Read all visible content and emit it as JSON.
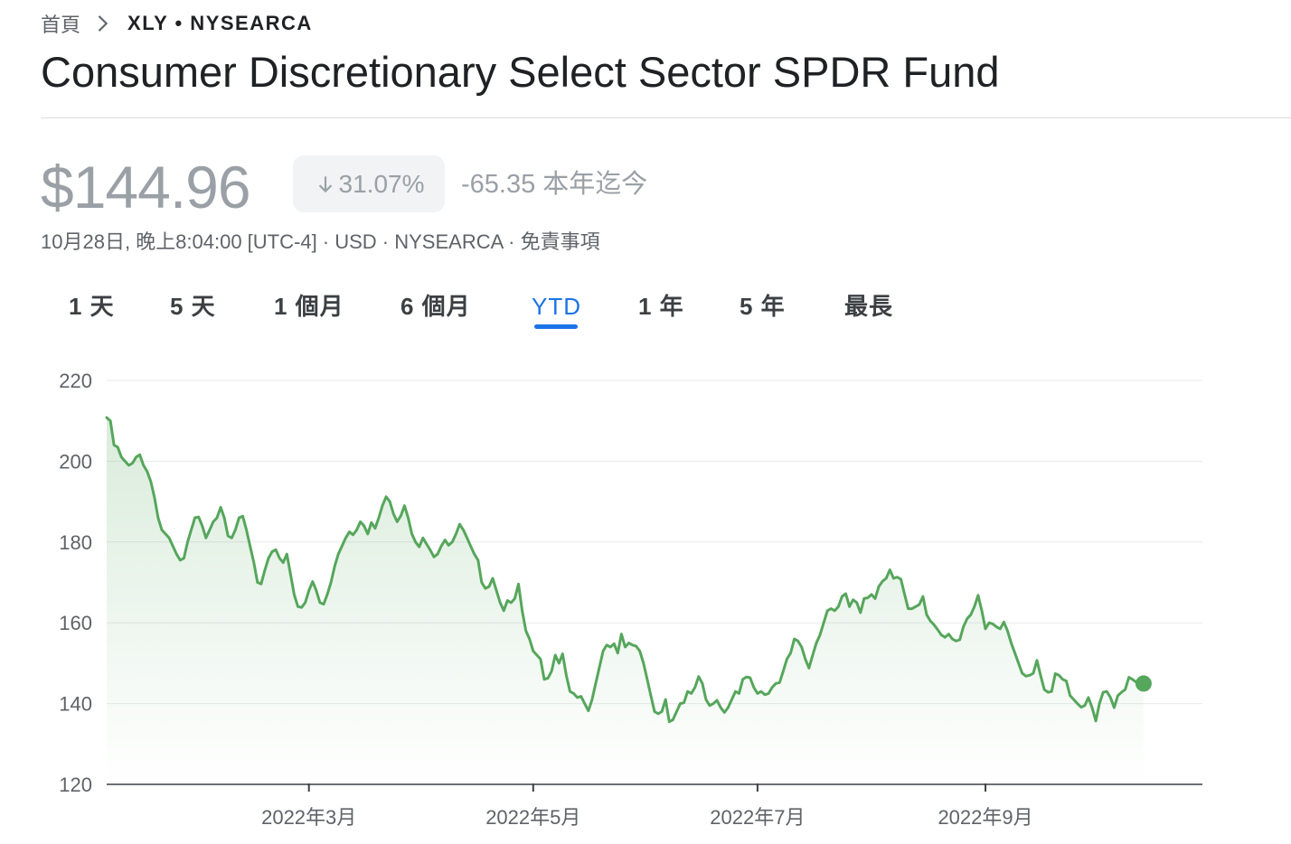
{
  "breadcrumb": {
    "home": "首頁",
    "current": "XLY • NYSEARCA"
  },
  "title": "Consumer Discretionary Select Sector SPDR Fund",
  "quote": {
    "price": "$144.96",
    "change_percent": "31.07%",
    "change_direction": "down",
    "change_abs": "-65.35 本年迄今",
    "meta": "10月28日, 晚上8:04:00 [UTC-4] · USD · NYSEARCA · ",
    "disclaimer": "免責事項"
  },
  "tabs": [
    {
      "label": "1 天",
      "active": false
    },
    {
      "label": "5 天",
      "active": false
    },
    {
      "label": "1 個月",
      "active": false
    },
    {
      "label": "6 個月",
      "active": false
    },
    {
      "label": "YTD",
      "active": true
    },
    {
      "label": "1 年",
      "active": false
    },
    {
      "label": "5 年",
      "active": false
    },
    {
      "label": "最長",
      "active": false
    }
  ],
  "colors": {
    "line": "#56a65c",
    "accent": "#1a73e8",
    "muted": "#9aa0a6"
  },
  "chart_data": {
    "type": "area",
    "ylim": [
      120,
      220
    ],
    "y_ticks": [
      220,
      200,
      180,
      160,
      140,
      120
    ],
    "x_ticks": [
      {
        "label": "2022年3月",
        "day": 58
      },
      {
        "label": "2022年5月",
        "day": 119
      },
      {
        "label": "2022年7月",
        "day": 180
      },
      {
        "label": "2022年9月",
        "day": 242
      }
    ],
    "x_range_days": [
      3,
      301
    ],
    "grid": true,
    "series": [
      {
        "points": [
          [
            3,
            210.8
          ],
          [
            4,
            210
          ],
          [
            5,
            204
          ],
          [
            6,
            203.5
          ],
          [
            7,
            201
          ],
          [
            8,
            200
          ],
          [
            9,
            199
          ],
          [
            10,
            199.5
          ],
          [
            11,
            201
          ],
          [
            12,
            201.6
          ],
          [
            13,
            199
          ],
          [
            14,
            197.5
          ],
          [
            15,
            195
          ],
          [
            16,
            191
          ],
          [
            17,
            186
          ],
          [
            18,
            183
          ],
          [
            19,
            182
          ],
          [
            20,
            181
          ],
          [
            21,
            179
          ],
          [
            22,
            177
          ],
          [
            23,
            175.5
          ],
          [
            24,
            176
          ],
          [
            25,
            180
          ],
          [
            26,
            183
          ],
          [
            27,
            186
          ],
          [
            28,
            186.2
          ],
          [
            29,
            184
          ],
          [
            30,
            181
          ],
          [
            31,
            183
          ],
          [
            32,
            185
          ],
          [
            33,
            186
          ],
          [
            34,
            188.6
          ],
          [
            35,
            186
          ],
          [
            36,
            181.5
          ],
          [
            37,
            181
          ],
          [
            38,
            183
          ],
          [
            39,
            186
          ],
          [
            40,
            186.4
          ],
          [
            41,
            183
          ],
          [
            42,
            179
          ],
          [
            43,
            175
          ],
          [
            44,
            170
          ],
          [
            45,
            169.6
          ],
          [
            46,
            173
          ],
          [
            47,
            176
          ],
          [
            48,
            177.6
          ],
          [
            49,
            178.1
          ],
          [
            50,
            176
          ],
          [
            51,
            174.9
          ],
          [
            52,
            177
          ],
          [
            53,
            172
          ],
          [
            54,
            167
          ],
          [
            55,
            164
          ],
          [
            56,
            163.8
          ],
          [
            57,
            165
          ],
          [
            58,
            168
          ],
          [
            59,
            170.2
          ],
          [
            60,
            168
          ],
          [
            61,
            165
          ],
          [
            62,
            164.6
          ],
          [
            63,
            167
          ],
          [
            64,
            170
          ],
          [
            65,
            174
          ],
          [
            66,
            177
          ],
          [
            67,
            179
          ],
          [
            68,
            181
          ],
          [
            69,
            182.5
          ],
          [
            70,
            181.8
          ],
          [
            71,
            183
          ],
          [
            72,
            185
          ],
          [
            73,
            184
          ],
          [
            74,
            182
          ],
          [
            75,
            184.8
          ],
          [
            76,
            183.4
          ],
          [
            77,
            186
          ],
          [
            78,
            189
          ],
          [
            79,
            191.2
          ],
          [
            80,
            190
          ],
          [
            81,
            187
          ],
          [
            82,
            185
          ],
          [
            83,
            186.5
          ],
          [
            84,
            189
          ],
          [
            85,
            186
          ],
          [
            86,
            182
          ],
          [
            87,
            180
          ],
          [
            88,
            178.8
          ],
          [
            89,
            181
          ],
          [
            90,
            179.5
          ],
          [
            91,
            178
          ],
          [
            92,
            176.3
          ],
          [
            93,
            177
          ],
          [
            94,
            179
          ],
          [
            95,
            180.5
          ],
          [
            96,
            179.2
          ],
          [
            97,
            180
          ],
          [
            98,
            182
          ],
          [
            99,
            184.4
          ],
          [
            100,
            183
          ],
          [
            101,
            181
          ],
          [
            102,
            179
          ],
          [
            103,
            177
          ],
          [
            104,
            175.5
          ],
          [
            105,
            170
          ],
          [
            106,
            168.5
          ],
          [
            107,
            169
          ],
          [
            108,
            171
          ],
          [
            109,
            168
          ],
          [
            110,
            165
          ],
          [
            111,
            163
          ],
          [
            112,
            165.5
          ],
          [
            113,
            165
          ],
          [
            114,
            166
          ],
          [
            115,
            169.6
          ],
          [
            116,
            163
          ],
          [
            117,
            158
          ],
          [
            118,
            156
          ],
          [
            119,
            153
          ],
          [
            120,
            152
          ],
          [
            121,
            151
          ],
          [
            122,
            146
          ],
          [
            123,
            146.3
          ],
          [
            124,
            148
          ],
          [
            125,
            152
          ],
          [
            126,
            150
          ],
          [
            127,
            152.3
          ],
          [
            128,
            147
          ],
          [
            129,
            143
          ],
          [
            130,
            142.5
          ],
          [
            131,
            141.5
          ],
          [
            132,
            141.8
          ],
          [
            133,
            140
          ],
          [
            134,
            138.2
          ],
          [
            135,
            141
          ],
          [
            136,
            145
          ],
          [
            137,
            149
          ],
          [
            138,
            153
          ],
          [
            139,
            154.5
          ],
          [
            140,
            154
          ],
          [
            141,
            154.8
          ],
          [
            142,
            152.5
          ],
          [
            143,
            157.2
          ],
          [
            144,
            154
          ],
          [
            145,
            155
          ],
          [
            146,
            154.5
          ],
          [
            147,
            154.2
          ],
          [
            148,
            153
          ],
          [
            149,
            150
          ],
          [
            150,
            146
          ],
          [
            151,
            142
          ],
          [
            152,
            138
          ],
          [
            153,
            137.5
          ],
          [
            154,
            138
          ],
          [
            155,
            141
          ],
          [
            156,
            135.5
          ],
          [
            157,
            136
          ],
          [
            158,
            138
          ],
          [
            159,
            140
          ],
          [
            160,
            140.2
          ],
          [
            161,
            143
          ],
          [
            162,
            142.5
          ],
          [
            163,
            144
          ],
          [
            164,
            146.7
          ],
          [
            165,
            145
          ],
          [
            166,
            141
          ],
          [
            167,
            139.5
          ],
          [
            168,
            140
          ],
          [
            169,
            140.8
          ],
          [
            170,
            139
          ],
          [
            171,
            137.8
          ],
          [
            172,
            139
          ],
          [
            173,
            141
          ],
          [
            174,
            143
          ],
          [
            175,
            142.5
          ],
          [
            176,
            146
          ],
          [
            177,
            146.6
          ],
          [
            178,
            146.4
          ],
          [
            179,
            144
          ],
          [
            180,
            142.5
          ],
          [
            181,
            143
          ],
          [
            182,
            142.2
          ],
          [
            183,
            142.5
          ],
          [
            184,
            144
          ],
          [
            185,
            145
          ],
          [
            186,
            145.2
          ],
          [
            187,
            148
          ],
          [
            188,
            151
          ],
          [
            189,
            152.5
          ],
          [
            190,
            156
          ],
          [
            191,
            155.5
          ],
          [
            192,
            154
          ],
          [
            193,
            151
          ],
          [
            194,
            148.8
          ],
          [
            195,
            152
          ],
          [
            196,
            155
          ],
          [
            197,
            157
          ],
          [
            198,
            160
          ],
          [
            199,
            163
          ],
          [
            200,
            163.5
          ],
          [
            201,
            163
          ],
          [
            202,
            164
          ],
          [
            203,
            166.5
          ],
          [
            204,
            167.2
          ],
          [
            205,
            164
          ],
          [
            206,
            165.7
          ],
          [
            207,
            165
          ],
          [
            208,
            162.5
          ],
          [
            209,
            166
          ],
          [
            210,
            166.2
          ],
          [
            211,
            167
          ],
          [
            212,
            166
          ],
          [
            213,
            169
          ],
          [
            214,
            170.3
          ],
          [
            215,
            171
          ],
          [
            216,
            173.1
          ],
          [
            217,
            171
          ],
          [
            218,
            171.3
          ],
          [
            219,
            170.8
          ],
          [
            220,
            167
          ],
          [
            221,
            163.5
          ],
          [
            222,
            163.5
          ],
          [
            223,
            164
          ],
          [
            224,
            164.5
          ],
          [
            225,
            166.5
          ],
          [
            226,
            162
          ],
          [
            227,
            160.5
          ],
          [
            228,
            159.5
          ],
          [
            229,
            158.3
          ],
          [
            230,
            157
          ],
          [
            231,
            156.4
          ],
          [
            232,
            157.2
          ],
          [
            233,
            156
          ],
          [
            234,
            155.5
          ],
          [
            235,
            155.8
          ],
          [
            236,
            159
          ],
          [
            237,
            161
          ],
          [
            238,
            162
          ],
          [
            239,
            164
          ],
          [
            240,
            166.8
          ],
          [
            241,
            163
          ],
          [
            242,
            158.5
          ],
          [
            243,
            160
          ],
          [
            244,
            159.7
          ],
          [
            245,
            159
          ],
          [
            246,
            158.5
          ],
          [
            247,
            160.2
          ],
          [
            248,
            158
          ],
          [
            249,
            155
          ],
          [
            250,
            152.5
          ],
          [
            251,
            150
          ],
          [
            252,
            147.5
          ],
          [
            253,
            146.8
          ],
          [
            254,
            147
          ],
          [
            255,
            147.5
          ],
          [
            256,
            150.7
          ],
          [
            257,
            147
          ],
          [
            258,
            143.5
          ],
          [
            259,
            142.8
          ],
          [
            260,
            143
          ],
          [
            261,
            147.4
          ],
          [
            262,
            147
          ],
          [
            263,
            146
          ],
          [
            264,
            145.6
          ],
          [
            265,
            142
          ],
          [
            266,
            141
          ],
          [
            267,
            140
          ],
          [
            268,
            139.1
          ],
          [
            269,
            139.5
          ],
          [
            270,
            141.5
          ],
          [
            271,
            139
          ],
          [
            272,
            135.7
          ],
          [
            273,
            140
          ],
          [
            274,
            142.8
          ],
          [
            275,
            143
          ],
          [
            276,
            141.5
          ],
          [
            277,
            139
          ],
          [
            278,
            142
          ],
          [
            279,
            142.8
          ],
          [
            280,
            143.5
          ],
          [
            281,
            146.5
          ],
          [
            282,
            146
          ],
          [
            283,
            145.3
          ],
          [
            284,
            145
          ],
          [
            285,
            144.96
          ]
        ]
      }
    ],
    "last_point": {
      "day": 285,
      "value": 144.96
    }
  }
}
